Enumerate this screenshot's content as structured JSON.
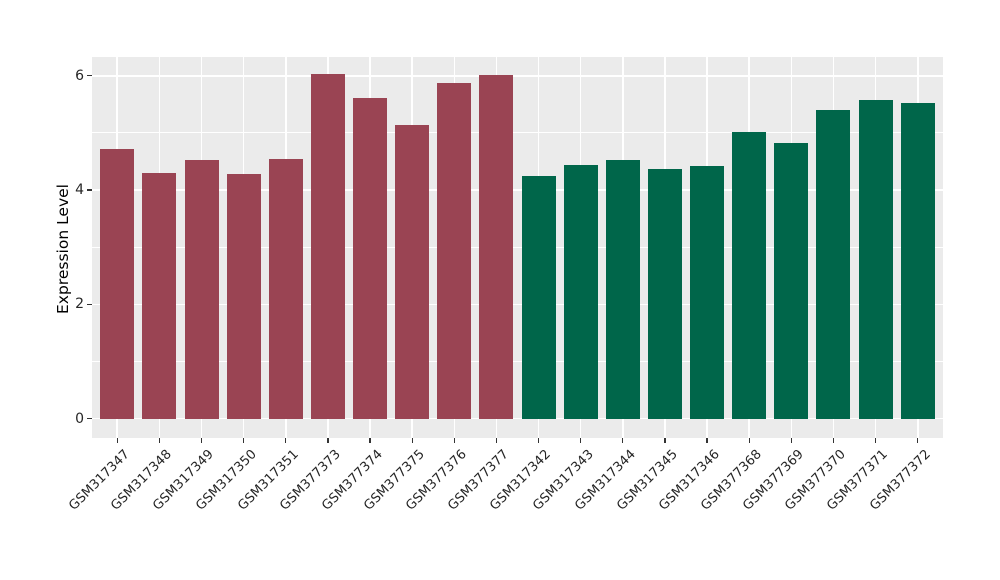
{
  "figure": {
    "background": "#FFFFFF",
    "panel_background": "#EBEBEB",
    "grid_color": "#FFFFFF",
    "axis_text_color": "#262626",
    "tick_mark_color": "#333333"
  },
  "chart_data": {
    "type": "bar",
    "title": "",
    "xlabel": "",
    "ylabel": "Expression Level",
    "ylim": [
      -0.34,
      6.33
    ],
    "yticks_major": [
      0,
      2,
      4,
      6
    ],
    "yticks_minor": [
      1,
      3,
      5
    ],
    "grid": "on",
    "legend": "none",
    "categories": [
      "GSM317347",
      "GSM317348",
      "GSM317349",
      "GSM317350",
      "GSM317351",
      "GSM377373",
      "GSM377374",
      "GSM377375",
      "GSM377376",
      "GSM377377",
      "GSM317342",
      "GSM317343",
      "GSM317344",
      "GSM317345",
      "GSM317346",
      "GSM377368",
      "GSM377369",
      "GSM377370",
      "GSM377371",
      "GSM377372"
    ],
    "values": [
      4.72,
      4.3,
      4.52,
      4.28,
      4.55,
      6.04,
      5.61,
      5.14,
      5.88,
      6.02,
      4.25,
      4.44,
      4.52,
      4.37,
      4.42,
      5.01,
      4.82,
      5.41,
      5.57,
      5.52
    ],
    "bar_groups": [
      "maroon",
      "maroon",
      "maroon",
      "maroon",
      "maroon",
      "maroon",
      "maroon",
      "maroon",
      "maroon",
      "maroon",
      "green",
      "green",
      "green",
      "green",
      "green",
      "green",
      "green",
      "green",
      "green",
      "green"
    ],
    "group_colors": {
      "maroon": "#9A4453",
      "green": "#00664A"
    }
  }
}
